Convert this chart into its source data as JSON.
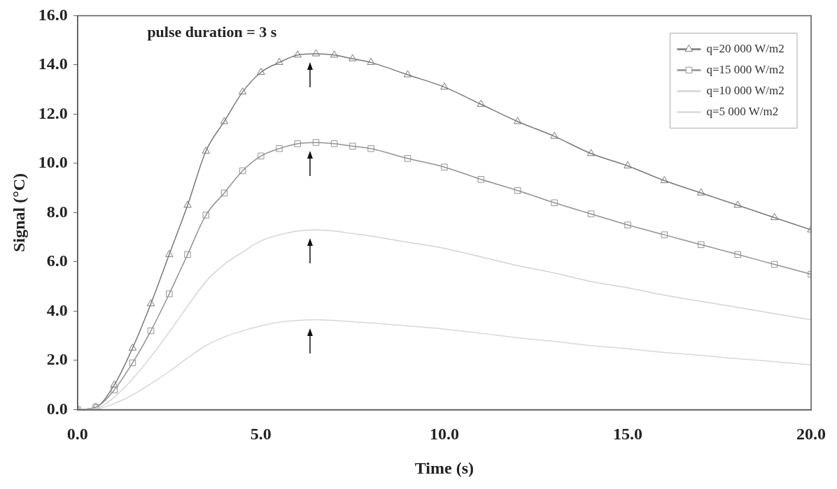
{
  "chart_data": {
    "type": "line",
    "xlabel": "Time (s)",
    "ylabel": "Signal (°C)",
    "annotations": [
      "pulse duration = 3 s"
    ],
    "x": [
      0,
      0.5,
      1,
      1.5,
      2,
      2.5,
      3,
      3.5,
      4,
      4.5,
      5,
      5.5,
      6,
      6.5,
      7,
      7.5,
      8,
      9,
      10,
      11,
      12,
      13,
      14,
      15,
      16,
      17,
      18,
      19,
      20
    ],
    "series": [
      {
        "name": "q=20 000 W/m2",
        "color": "#787878",
        "marker": "triangle",
        "values": [
          0,
          0.1,
          1.0,
          2.5,
          4.3,
          6.3,
          8.3,
          10.5,
          11.7,
          12.9,
          13.7,
          14.1,
          14.4,
          14.45,
          14.4,
          14.25,
          14.1,
          13.6,
          13.1,
          12.4,
          11.7,
          11.1,
          10.4,
          9.9,
          9.3,
          8.8,
          8.3,
          7.8,
          7.3
        ]
      },
      {
        "name": "q=15 000 W/m2",
        "color": "#929292",
        "marker": "square",
        "values": [
          0,
          0.1,
          0.8,
          1.9,
          3.2,
          4.7,
          6.3,
          7.9,
          8.8,
          9.7,
          10.3,
          10.6,
          10.8,
          10.85,
          10.8,
          10.7,
          10.6,
          10.2,
          9.85,
          9.35,
          8.9,
          8.4,
          7.95,
          7.5,
          7.1,
          6.7,
          6.3,
          5.9,
          5.5
        ]
      },
      {
        "name": "q=10 000 W/m2",
        "color": "#d4d4d4",
        "marker": "none",
        "values": [
          0,
          0.05,
          0.5,
          1.25,
          2.15,
          3.15,
          4.2,
          5.2,
          5.9,
          6.4,
          6.85,
          7.1,
          7.25,
          7.3,
          7.25,
          7.15,
          7.05,
          6.8,
          6.55,
          6.2,
          5.85,
          5.55,
          5.2,
          4.95,
          4.65,
          4.4,
          4.15,
          3.9,
          3.65
        ]
      },
      {
        "name": "q=5 000 W/m2",
        "color": "#d8d8d8",
        "marker": "none",
        "values": [
          0,
          0.02,
          0.25,
          0.6,
          1.05,
          1.55,
          2.1,
          2.6,
          2.95,
          3.2,
          3.4,
          3.55,
          3.62,
          3.65,
          3.62,
          3.57,
          3.52,
          3.4,
          3.27,
          3.1,
          2.92,
          2.77,
          2.6,
          2.47,
          2.32,
          2.2,
          2.07,
          1.95,
          1.82
        ]
      }
    ],
    "xlim": [
      0,
      20
    ],
    "xticks": [
      {
        "value": 0,
        "label": "0.0"
      },
      {
        "value": 5,
        "label": "5.0"
      },
      {
        "value": 10,
        "label": "10.0"
      },
      {
        "value": 15,
        "label": "15.0"
      },
      {
        "value": 20,
        "label": "20.0"
      }
    ],
    "ylim": [
      0,
      16
    ],
    "yticks": [
      {
        "value": 0,
        "label": "0.0"
      },
      {
        "value": 2,
        "label": "2.0"
      },
      {
        "value": 4,
        "label": "4.0"
      },
      {
        "value": 6,
        "label": "6.0"
      },
      {
        "value": 8,
        "label": "8.0"
      },
      {
        "value": 10,
        "label": "10.0"
      },
      {
        "value": 12,
        "label": "12.0"
      },
      {
        "value": 14,
        "label": "14.0"
      },
      {
        "value": 16,
        "label": "16.0"
      }
    ],
    "grid": false,
    "legend": "top right",
    "line_style": "solid"
  }
}
